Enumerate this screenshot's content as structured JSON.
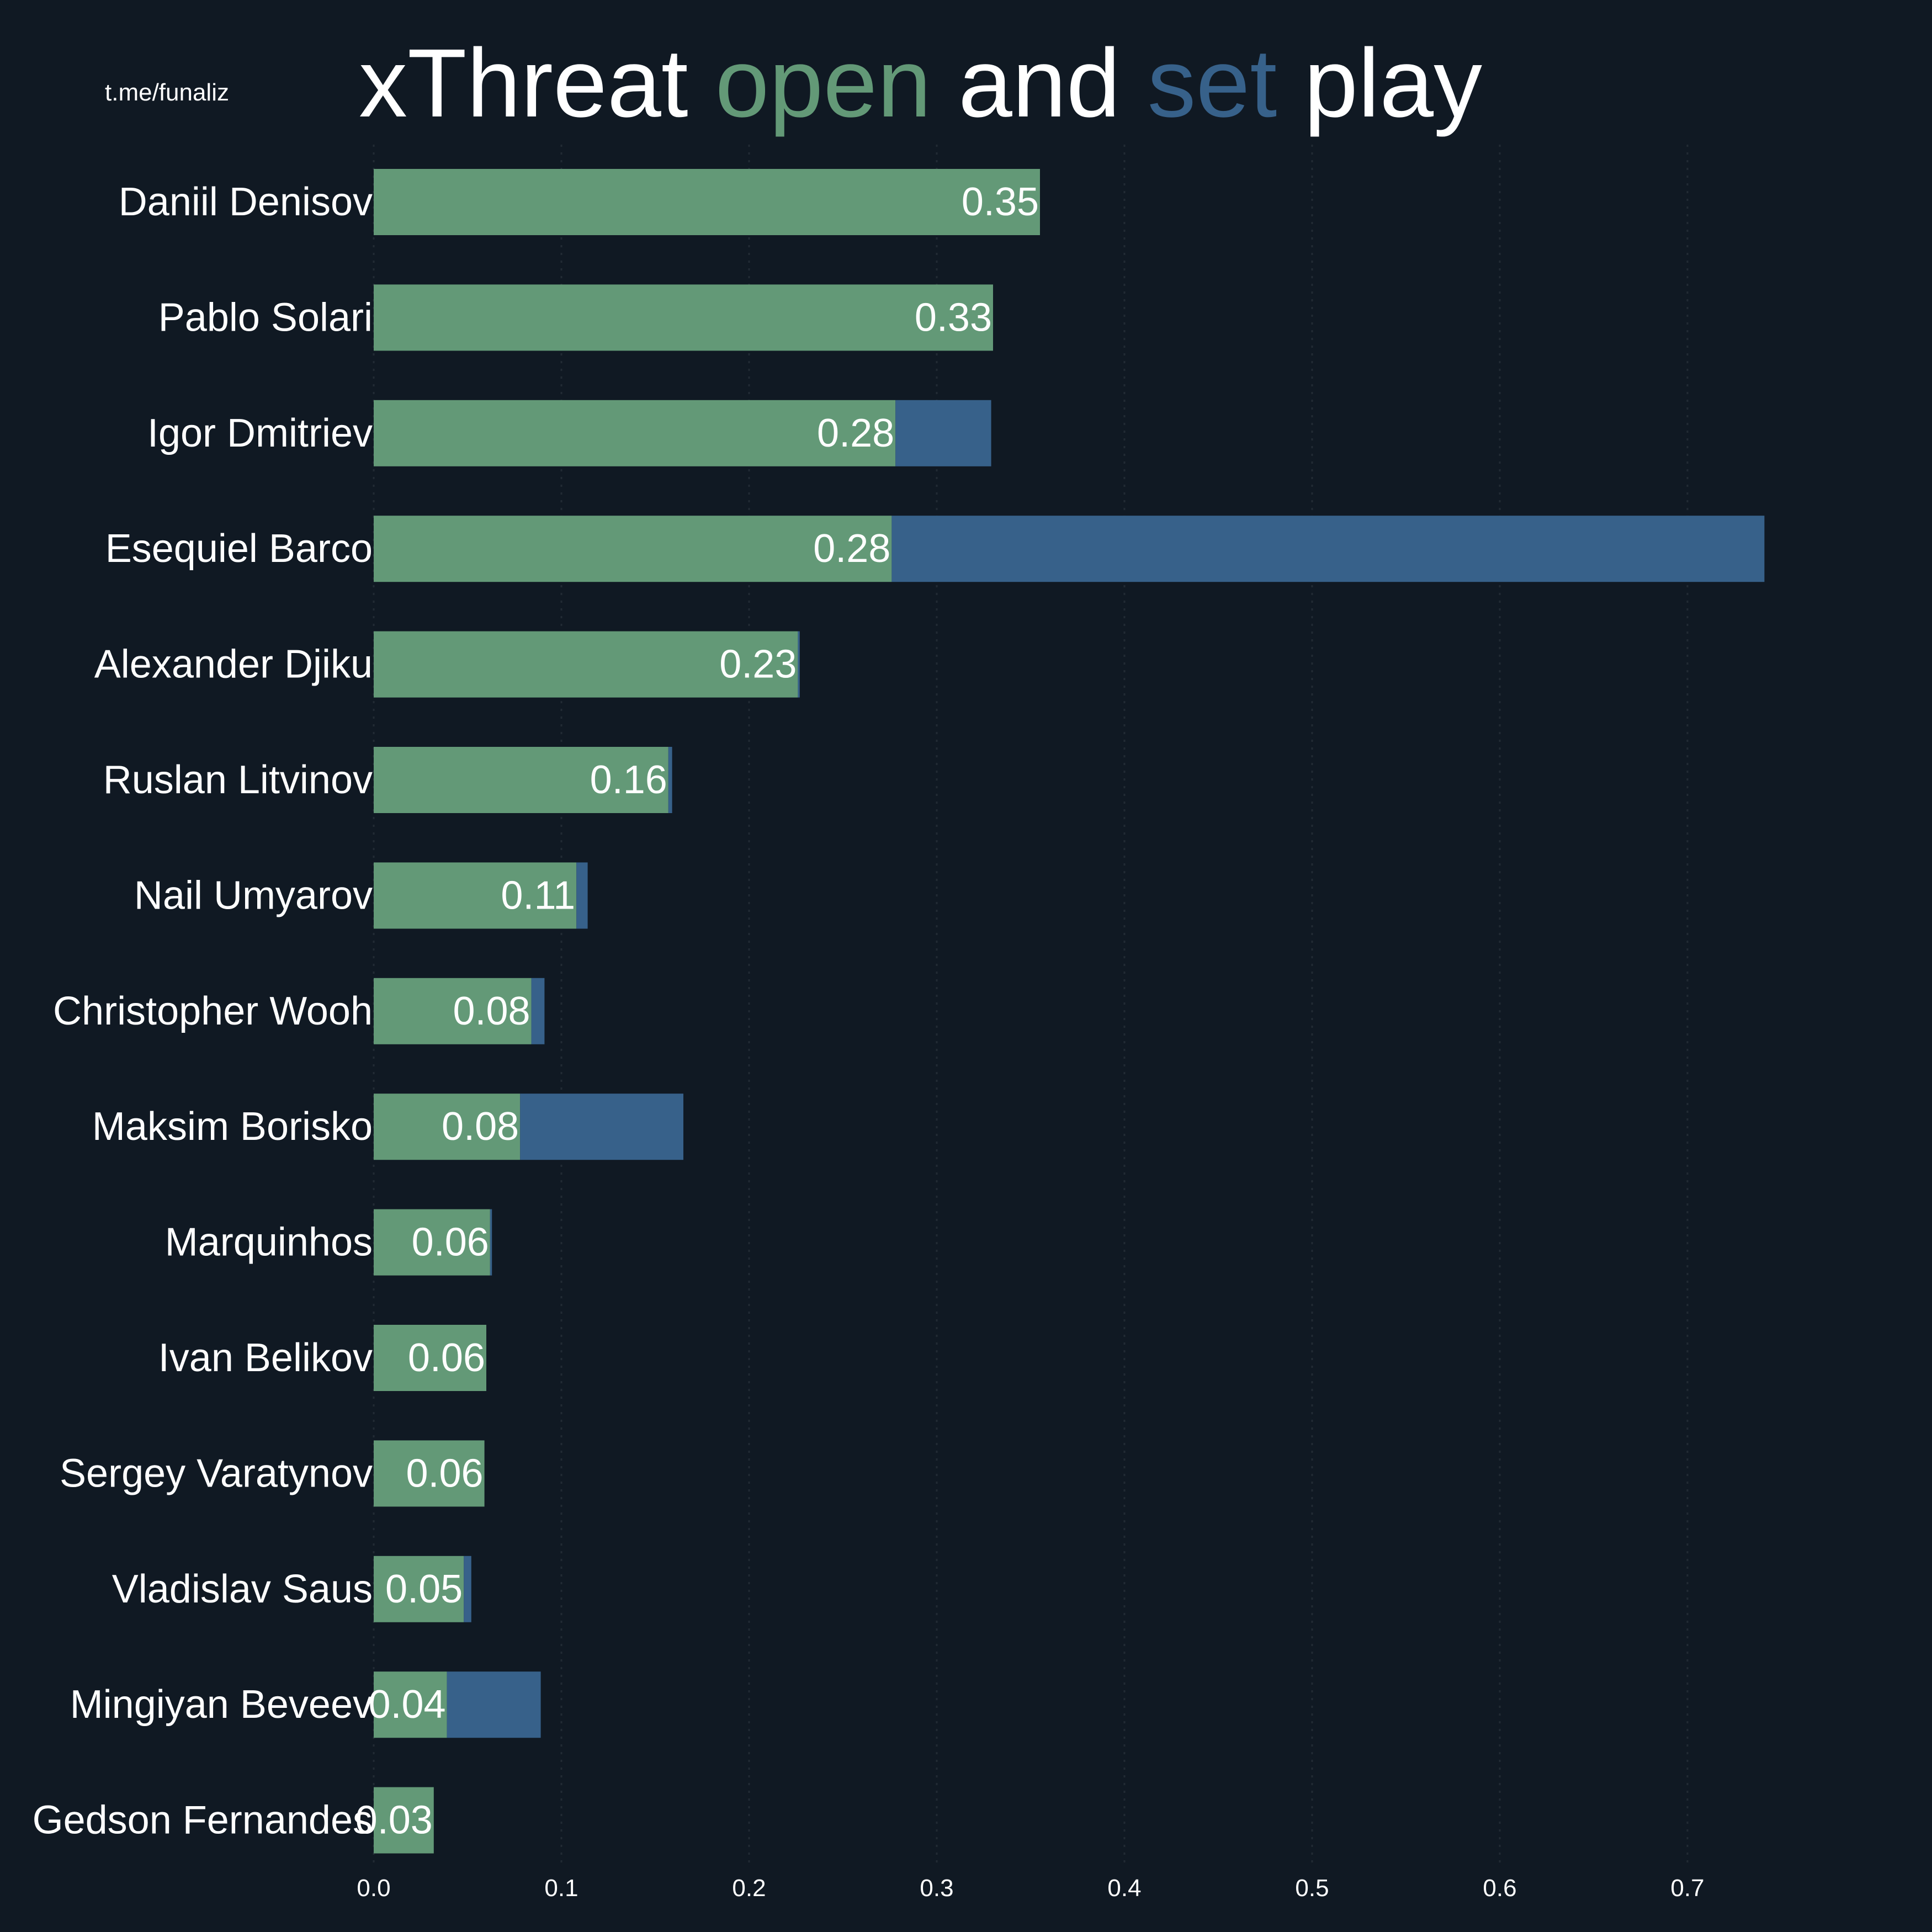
{
  "watermark": "t.me/funaliz",
  "title": {
    "part1": "xThreat ",
    "open_word": "open",
    "part2": " and ",
    "set_word": "set",
    "part3": " play"
  },
  "colors": {
    "background": "#101923",
    "open_play": "#639977",
    "set_play": "#37618a",
    "text": "#ffffff"
  },
  "chart_data": {
    "type": "bar",
    "orientation": "horizontal",
    "stacked": true,
    "title": "xThreat open and set play",
    "xlabel": "",
    "ylabel": "",
    "xlim": [
      -0.035,
      0.76
    ],
    "xticks": [
      0.0,
      0.1,
      0.2,
      0.3,
      0.4,
      0.5,
      0.6,
      0.7
    ],
    "xtick_labels": [
      "0.0",
      "0.1",
      "0.2",
      "0.3",
      "0.4",
      "0.5",
      "0.6",
      "0.7"
    ],
    "grid": "vertical dotted, faint",
    "legend": "none (title words colored)",
    "categories": [
      "Daniil Denisov",
      "Pablo Solari",
      "Igor Dmitriev",
      "Esequiel Barco",
      "Alexander Djiku",
      "Ruslan Litvinov",
      "Nail Umyarov",
      "Christopher Wooh",
      "Maksim Borisko",
      "Marquinhos",
      "Ivan Belikov",
      "Sergey Varatynov",
      "Vladislav Saus",
      "Mingiyan Beveev",
      "Gedson Fernandes"
    ],
    "series": [
      {
        "name": "open",
        "color": "#639977",
        "values": [
          0.355,
          0.33,
          0.278,
          0.276,
          0.226,
          0.157,
          0.108,
          0.084,
          0.078,
          0.062,
          0.06,
          0.059,
          0.048,
          0.039,
          0.032
        ]
      },
      {
        "name": "set",
        "color": "#37618a",
        "values": [
          0.0,
          0.0,
          0.051,
          0.465,
          0.001,
          0.002,
          0.006,
          0.007,
          0.087,
          0.001,
          0.0,
          0.0,
          0.004,
          0.05,
          0.0
        ]
      }
    ],
    "data_labels": [
      "0.35",
      "0.33",
      "0.28",
      "0.28",
      "0.23",
      "0.16",
      "0.11",
      "0.08",
      "0.08",
      "0.06",
      "0.06",
      "0.06",
      "0.05",
      "0.04",
      "0.03"
    ]
  }
}
